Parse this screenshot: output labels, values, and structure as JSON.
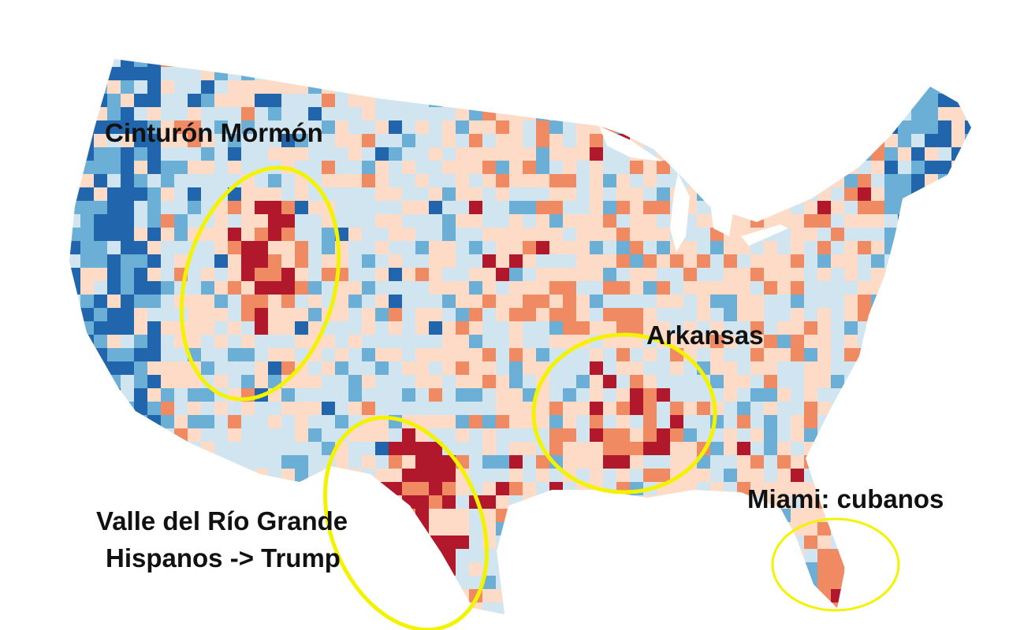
{
  "annotations": [
    {
      "lines": [
        "Cinturón Mormón"
      ]
    },
    {
      "lines": [
        "Arkansas"
      ]
    },
    {
      "lines": [
        "Miami: cubanos"
      ]
    },
    {
      "lines": [
        "Valle del Río Grande",
        "Hispanos -> Trump"
      ]
    }
  ]
}
